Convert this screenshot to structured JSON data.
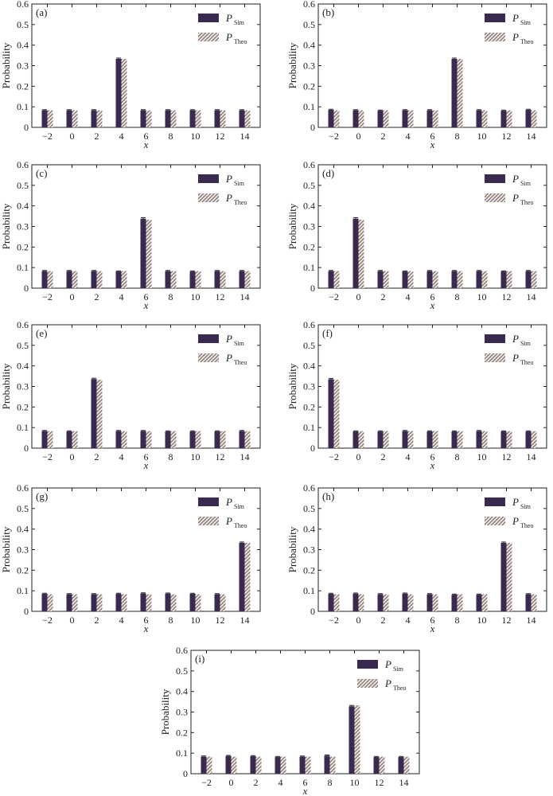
{
  "colors": {
    "sim_fill": "#3b2a4f",
    "theo_stripe": "#8c7a76",
    "theo_bg": "#f3efec",
    "axis": "#222222"
  },
  "chart_data": [
    {
      "type": "bar",
      "label": "(a)",
      "categories": [
        "-2",
        "0",
        "2",
        "4",
        "6",
        "8",
        "10",
        "12",
        "14"
      ],
      "categories_display": [
        "−2",
        "0",
        "2",
        "4",
        "6",
        "8",
        "10",
        "12",
        "14"
      ],
      "xlabel": "x",
      "ylabel": "Probability",
      "ylim": [
        0,
        0.6
      ],
      "yticks": [
        "0",
        "0.1",
        "0.2",
        "0.3",
        "0.4",
        "0.5",
        "0.6"
      ],
      "legend_position": "top-right",
      "series": [
        {
          "legend_main": "P",
          "legend_sub": "Sim",
          "style": "solid",
          "values": [
            0.083,
            0.083,
            0.083,
            0.333,
            0.083,
            0.083,
            0.083,
            0.083,
            0.083
          ],
          "errors": [
            0.003,
            0.003,
            0.003,
            0.004,
            0.003,
            0.003,
            0.003,
            0.003,
            0.003
          ]
        },
        {
          "legend_main": "P",
          "legend_sub": "Theo",
          "style": "hatched",
          "values": [
            0.083,
            0.083,
            0.083,
            0.333,
            0.083,
            0.083,
            0.083,
            0.083,
            0.083
          ]
        }
      ]
    },
    {
      "type": "bar",
      "label": "(b)",
      "categories": [
        "-2",
        "0",
        "2",
        "4",
        "6",
        "8",
        "10",
        "12",
        "14"
      ],
      "categories_display": [
        "−2",
        "0",
        "2",
        "4",
        "6",
        "8",
        "10",
        "12",
        "14"
      ],
      "xlabel": "x",
      "ylabel": "Probability",
      "ylim": [
        0,
        0.6
      ],
      "yticks": [
        "0",
        "0.1",
        "0.2",
        "0.3",
        "0.4",
        "0.5",
        "0.6"
      ],
      "legend_position": "top-right",
      "series": [
        {
          "legend_main": "P",
          "legend_sub": "Sim",
          "style": "solid",
          "values": [
            0.085,
            0.083,
            0.081,
            0.083,
            0.083,
            0.333,
            0.083,
            0.081,
            0.085
          ],
          "errors": [
            0.003,
            0.003,
            0.003,
            0.003,
            0.003,
            0.004,
            0.003,
            0.003,
            0.003
          ]
        },
        {
          "legend_main": "P",
          "legend_sub": "Theo",
          "style": "hatched",
          "values": [
            0.083,
            0.083,
            0.083,
            0.083,
            0.083,
            0.333,
            0.083,
            0.083,
            0.083
          ]
        }
      ]
    },
    {
      "type": "bar",
      "label": "(c)",
      "categories": [
        "-2",
        "0",
        "2",
        "4",
        "6",
        "8",
        "10",
        "12",
        "14"
      ],
      "categories_display": [
        "−2",
        "0",
        "2",
        "4",
        "6",
        "8",
        "10",
        "12",
        "14"
      ],
      "xlabel": "x",
      "ylabel": "Probability",
      "ylim": [
        0,
        0.6
      ],
      "yticks": [
        "0",
        "0.1",
        "0.2",
        "0.3",
        "0.4",
        "0.5",
        "0.6"
      ],
      "legend_position": "top-right",
      "series": [
        {
          "legend_main": "P",
          "legend_sub": "Sim",
          "style": "solid",
          "values": [
            0.083,
            0.083,
            0.083,
            0.081,
            0.338,
            0.083,
            0.081,
            0.083,
            0.083
          ],
          "errors": [
            0.003,
            0.003,
            0.003,
            0.003,
            0.005,
            0.003,
            0.003,
            0.003,
            0.003
          ]
        },
        {
          "legend_main": "P",
          "legend_sub": "Theo",
          "style": "hatched",
          "values": [
            0.083,
            0.083,
            0.083,
            0.083,
            0.333,
            0.083,
            0.083,
            0.083,
            0.083
          ]
        }
      ]
    },
    {
      "type": "bar",
      "label": "(d)",
      "categories": [
        "-2",
        "0",
        "2",
        "4",
        "6",
        "8",
        "10",
        "12",
        "14"
      ],
      "categories_display": [
        "−2",
        "0",
        "2",
        "4",
        "6",
        "8",
        "10",
        "12",
        "14"
      ],
      "xlabel": "x",
      "ylabel": "Probability",
      "ylim": [
        0,
        0.6
      ],
      "yticks": [
        "0",
        "0.1",
        "0.2",
        "0.3",
        "0.4",
        "0.5",
        "0.6"
      ],
      "legend_position": "top-right",
      "series": [
        {
          "legend_main": "P",
          "legend_sub": "Sim",
          "style": "solid",
          "values": [
            0.083,
            0.338,
            0.083,
            0.081,
            0.083,
            0.083,
            0.083,
            0.081,
            0.083
          ],
          "errors": [
            0.003,
            0.005,
            0.003,
            0.003,
            0.003,
            0.003,
            0.003,
            0.003,
            0.003
          ]
        },
        {
          "legend_main": "P",
          "legend_sub": "Theo",
          "style": "hatched",
          "values": [
            0.083,
            0.333,
            0.083,
            0.083,
            0.083,
            0.083,
            0.083,
            0.083,
            0.083
          ]
        }
      ]
    },
    {
      "type": "bar",
      "label": "(e)",
      "categories": [
        "-2",
        "0",
        "2",
        "4",
        "6",
        "8",
        "10",
        "12",
        "14"
      ],
      "categories_display": [
        "−2",
        "0",
        "2",
        "4",
        "6",
        "8",
        "10",
        "12",
        "14"
      ],
      "xlabel": "x",
      "ylabel": "Probability",
      "ylim": [
        0,
        0.6
      ],
      "yticks": [
        "0",
        "0.1",
        "0.2",
        "0.3",
        "0.4",
        "0.5",
        "0.6"
      ],
      "legend_position": "top-right",
      "series": [
        {
          "legend_main": "P",
          "legend_sub": "Sim",
          "style": "solid",
          "values": [
            0.083,
            0.081,
            0.336,
            0.083,
            0.083,
            0.081,
            0.081,
            0.081,
            0.083
          ],
          "errors": [
            0.003,
            0.003,
            0.004,
            0.003,
            0.003,
            0.003,
            0.003,
            0.003,
            0.003
          ]
        },
        {
          "legend_main": "P",
          "legend_sub": "Theo",
          "style": "hatched",
          "values": [
            0.083,
            0.083,
            0.333,
            0.083,
            0.083,
            0.083,
            0.083,
            0.083,
            0.083
          ]
        }
      ]
    },
    {
      "type": "bar",
      "label": "(f)",
      "categories": [
        "-2",
        "0",
        "2",
        "4",
        "6",
        "8",
        "10",
        "12",
        "14"
      ],
      "categories_display": [
        "−2",
        "0",
        "2",
        "4",
        "6",
        "8",
        "10",
        "12",
        "14"
      ],
      "xlabel": "x",
      "ylabel": "Probability",
      "ylim": [
        0,
        0.6
      ],
      "yticks": [
        "0",
        "0.1",
        "0.2",
        "0.3",
        "0.4",
        "0.5",
        "0.6"
      ],
      "legend_position": "top-right",
      "series": [
        {
          "legend_main": "P",
          "legend_sub": "Sim",
          "style": "solid",
          "values": [
            0.335,
            0.081,
            0.081,
            0.083,
            0.081,
            0.081,
            0.083,
            0.081,
            0.081
          ],
          "errors": [
            0.004,
            0.003,
            0.003,
            0.003,
            0.003,
            0.003,
            0.003,
            0.003,
            0.003
          ]
        },
        {
          "legend_main": "P",
          "legend_sub": "Theo",
          "style": "hatched",
          "values": [
            0.333,
            0.083,
            0.083,
            0.083,
            0.083,
            0.083,
            0.083,
            0.083,
            0.083
          ]
        }
      ]
    },
    {
      "type": "bar",
      "label": "(g)",
      "categories": [
        "-2",
        "0",
        "2",
        "4",
        "6",
        "8",
        "10",
        "12",
        "14"
      ],
      "categories_display": [
        "−2",
        "0",
        "2",
        "4",
        "6",
        "8",
        "10",
        "12",
        "14"
      ],
      "xlabel": "x",
      "ylabel": "Probability",
      "ylim": [
        0,
        0.6
      ],
      "yticks": [
        "0",
        "0.1",
        "0.2",
        "0.3",
        "0.4",
        "0.5",
        "0.6"
      ],
      "legend_position": "top-right",
      "series": [
        {
          "legend_main": "P",
          "legend_sub": "Sim",
          "style": "solid",
          "values": [
            0.085,
            0.083,
            0.083,
            0.085,
            0.087,
            0.086,
            0.085,
            0.083,
            0.333
          ],
          "errors": [
            0.003,
            0.003,
            0.003,
            0.003,
            0.003,
            0.003,
            0.003,
            0.003,
            0.004
          ]
        },
        {
          "legend_main": "P",
          "legend_sub": "Theo",
          "style": "hatched",
          "values": [
            0.083,
            0.083,
            0.083,
            0.083,
            0.083,
            0.083,
            0.083,
            0.083,
            0.333
          ]
        }
      ]
    },
    {
      "type": "bar",
      "label": "(h)",
      "categories": [
        "-2",
        "0",
        "2",
        "4",
        "6",
        "8",
        "10",
        "12",
        "14"
      ],
      "categories_display": [
        "−2",
        "0",
        "2",
        "4",
        "6",
        "8",
        "10",
        "12",
        "14"
      ],
      "xlabel": "x",
      "ylabel": "Probability",
      "ylim": [
        0,
        0.6
      ],
      "yticks": [
        "0",
        "0.1",
        "0.2",
        "0.3",
        "0.4",
        "0.5",
        "0.6"
      ],
      "legend_position": "top-right",
      "series": [
        {
          "legend_main": "P",
          "legend_sub": "Sim",
          "style": "solid",
          "values": [
            0.085,
            0.086,
            0.083,
            0.086,
            0.083,
            0.081,
            0.081,
            0.333,
            0.083
          ],
          "errors": [
            0.003,
            0.003,
            0.003,
            0.003,
            0.003,
            0.003,
            0.003,
            0.004,
            0.003
          ]
        },
        {
          "legend_main": "P",
          "legend_sub": "Theo",
          "style": "hatched",
          "values": [
            0.083,
            0.083,
            0.083,
            0.083,
            0.083,
            0.083,
            0.083,
            0.333,
            0.083
          ]
        }
      ]
    },
    {
      "type": "bar",
      "label": "(i)",
      "categories": [
        "-2",
        "0",
        "2",
        "4",
        "6",
        "8",
        "10",
        "12",
        "14"
      ],
      "categories_display": [
        "−2",
        "0",
        "2",
        "4",
        "6",
        "8",
        "10",
        "12",
        "14"
      ],
      "xlabel": "x",
      "ylabel": "Probability",
      "ylim": [
        0,
        0.6
      ],
      "yticks": [
        "0",
        "0.1",
        "0.2",
        "0.3",
        "0.4",
        "0.5",
        "0.6"
      ],
      "legend_position": "top-right",
      "series": [
        {
          "legend_main": "P",
          "legend_sub": "Sim",
          "style": "solid",
          "values": [
            0.083,
            0.086,
            0.085,
            0.081,
            0.083,
            0.088,
            0.328,
            0.081,
            0.081
          ],
          "errors": [
            0.003,
            0.003,
            0.003,
            0.003,
            0.003,
            0.003,
            0.004,
            0.003,
            0.003
          ]
        },
        {
          "legend_main": "P",
          "legend_sub": "Theo",
          "style": "hatched",
          "values": [
            0.083,
            0.083,
            0.083,
            0.083,
            0.083,
            0.083,
            0.333,
            0.083,
            0.083
          ]
        }
      ]
    }
  ]
}
